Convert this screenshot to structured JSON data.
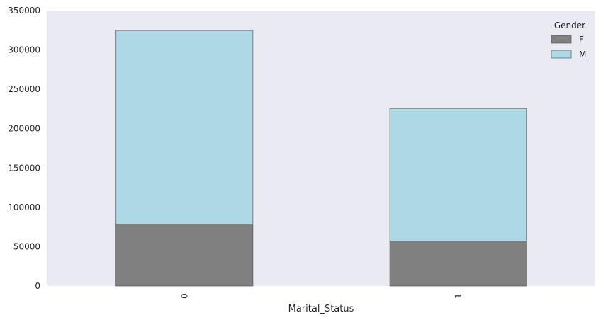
{
  "chart_data": {
    "type": "bar",
    "stacked": true,
    "categories": [
      "0",
      "1"
    ],
    "series": [
      {
        "name": "F",
        "values": [
          78800,
          57000
        ],
        "color": "#808080"
      },
      {
        "name": "M",
        "values": [
          245900,
          168600
        ],
        "color": "#add8e6"
      }
    ],
    "xlabel": "Marital_Status",
    "ylabel": "",
    "ylim": [
      0,
      350000
    ],
    "yticks": [
      0,
      50000,
      100000,
      150000,
      200000,
      250000,
      300000,
      350000
    ],
    "legend_title": "Gender",
    "legend_position": "top-right",
    "grid": false,
    "background": "#eaeaf2",
    "bar_edge_color": "#555555"
  }
}
